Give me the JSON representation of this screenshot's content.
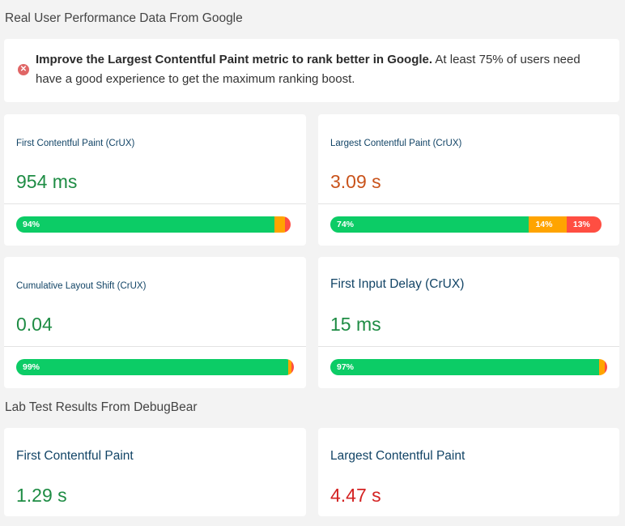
{
  "colors": {
    "good": "#0ccc66",
    "needs_improvement": "#ffa400",
    "poor": "#ff4e42",
    "value_good": "#1e8c44",
    "value_ni": "#c9531b",
    "value_poor": "#d42222",
    "title": "#124466"
  },
  "crux_section": {
    "title": "Real User Performance Data From Google",
    "alert": {
      "icon": "error-circle-icon",
      "bold": "Improve the Largest Contentful Paint metric to rank better in Google.",
      "text": " At least 75% of users need have a good experience to get the maximum ranking boost."
    },
    "metrics": [
      {
        "title": "First Contentful Paint (CrUX)",
        "value": "954 ms",
        "status": "good",
        "good": 94,
        "ni": 4,
        "poor": 2,
        "labels": {
          "good": "94%",
          "ni": "",
          "poor": ""
        }
      },
      {
        "title": "Largest Contentful Paint (CrUX)",
        "value": "3.09 s",
        "status": "ni",
        "good": 74,
        "ni": 14,
        "poor": 13,
        "labels": {
          "good": "74%",
          "ni": "14%",
          "poor": "13%"
        }
      },
      {
        "title": "Cumulative Layout Shift (CrUX)",
        "value": "0.04",
        "status": "good",
        "good": 99,
        "ni": 1,
        "poor": 1,
        "labels": {
          "good": "99%",
          "ni": "",
          "poor": ""
        }
      },
      {
        "title": "First Input Delay (CrUX)",
        "value": "15 ms",
        "status": "good",
        "good": 97,
        "ni": 2,
        "poor": 1,
        "labels": {
          "good": "97%",
          "ni": "",
          "poor": ""
        }
      }
    ]
  },
  "lab_section": {
    "title": "Lab Test Results From DebugBear",
    "metrics": [
      {
        "title": "First Contentful Paint",
        "value": "1.29 s",
        "status": "good"
      },
      {
        "title": "Largest Contentful Paint",
        "value": "4.47 s",
        "status": "poor"
      }
    ]
  }
}
